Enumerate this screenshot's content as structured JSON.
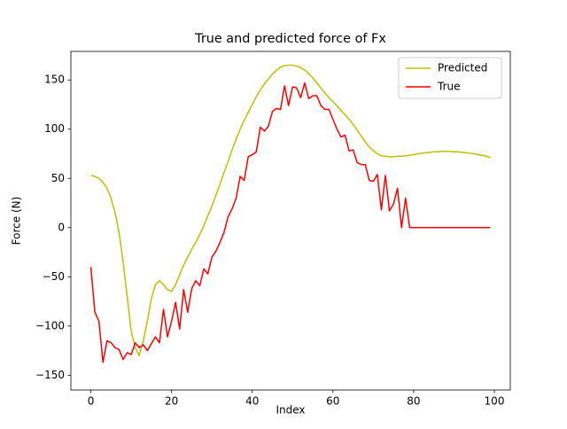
{
  "chart_data": {
    "type": "line",
    "title": "True and predicted force of Fx",
    "x_label": "Index",
    "y_label": "Force (N)",
    "x": [
      0,
      1,
      2,
      3,
      4,
      5,
      6,
      7,
      8,
      9,
      10,
      11,
      12,
      13,
      14,
      15,
      16,
      17,
      18,
      19,
      20,
      21,
      22,
      23,
      24,
      25,
      26,
      27,
      28,
      29,
      30,
      31,
      32,
      33,
      34,
      35,
      36,
      37,
      38,
      39,
      40,
      41,
      42,
      43,
      44,
      45,
      46,
      47,
      48,
      49,
      50,
      51,
      52,
      53,
      54,
      55,
      56,
      57,
      58,
      59,
      60,
      61,
      62,
      63,
      64,
      65,
      66,
      67,
      68,
      69,
      70,
      71,
      72,
      73,
      74,
      75,
      76,
      77,
      78,
      79,
      80,
      81,
      82,
      83,
      84,
      85,
      86,
      87,
      88,
      89,
      90,
      91,
      92,
      93,
      94,
      95,
      96,
      97,
      98,
      99
    ],
    "series": [
      {
        "name": "Predicted",
        "color": "#bfbf00",
        "values": [
          53,
          52,
          50,
          46,
          40,
          30,
          15,
          -5,
          -35,
          -70,
          -105,
          -122,
          -130,
          -115,
          -95,
          -72,
          -58,
          -54,
          -58,
          -63,
          -65,
          -58,
          -48,
          -38,
          -30,
          -22,
          -15,
          -7,
          2,
          12,
          22,
          33,
          44,
          56,
          67,
          79,
          90,
          100,
          109,
          117,
          125,
          133,
          140,
          146,
          151,
          156,
          160,
          163,
          164.5,
          165,
          165,
          164,
          162.5,
          160,
          156.5,
          152,
          147,
          142,
          137,
          132,
          128,
          123.5,
          119,
          114.5,
          110,
          105,
          99,
          93,
          87,
          82,
          78,
          75,
          73,
          72.5,
          72,
          72,
          72.5,
          72.5,
          73,
          73.5,
          74,
          75,
          75.5,
          76,
          76.5,
          77,
          77,
          77.5,
          77.5,
          77.5,
          77,
          77,
          76.5,
          76,
          75.5,
          75,
          74,
          73.5,
          72.5,
          71
        ]
      },
      {
        "name": "True",
        "color": "#ff0000",
        "values": [
          -40,
          -86,
          -95,
          -137,
          -115,
          -117,
          -122,
          -124,
          -134,
          -127,
          -129,
          -117,
          -122,
          -119,
          -125,
          -118,
          -111,
          -117,
          -83,
          -111,
          -95,
          -76,
          -103,
          -63,
          -86,
          -62,
          -54,
          -59,
          -42,
          -47,
          -30,
          -24,
          -15,
          -5,
          11,
          19,
          30,
          52,
          48,
          72,
          74,
          77,
          102,
          98,
          103,
          118,
          121,
          120,
          144,
          124,
          143,
          142,
          132,
          147,
          131,
          134,
          134,
          124,
          120,
          120,
          110,
          100,
          92,
          94,
          78,
          79,
          66,
          64,
          64,
          48,
          47,
          54,
          18,
          53,
          17,
          24,
          40,
          0,
          30,
          0,
          0,
          0,
          0,
          0,
          0,
          0,
          0,
          0,
          0,
          0,
          0,
          0,
          0,
          0,
          0,
          0,
          0,
          0,
          0,
          0
        ]
      }
    ],
    "xlim": [
      -4.95,
      103.95
    ],
    "ylim": [
      -165,
      179
    ],
    "xticks": [
      0,
      20,
      40,
      60,
      80,
      100
    ],
    "yticks": [
      {
        "value": -150,
        "label": "−150"
      },
      {
        "value": -100,
        "label": "−100"
      },
      {
        "value": -50,
        "label": "−50"
      },
      0,
      50,
      100,
      150
    ],
    "legend": "upper right",
    "grid": false
  }
}
